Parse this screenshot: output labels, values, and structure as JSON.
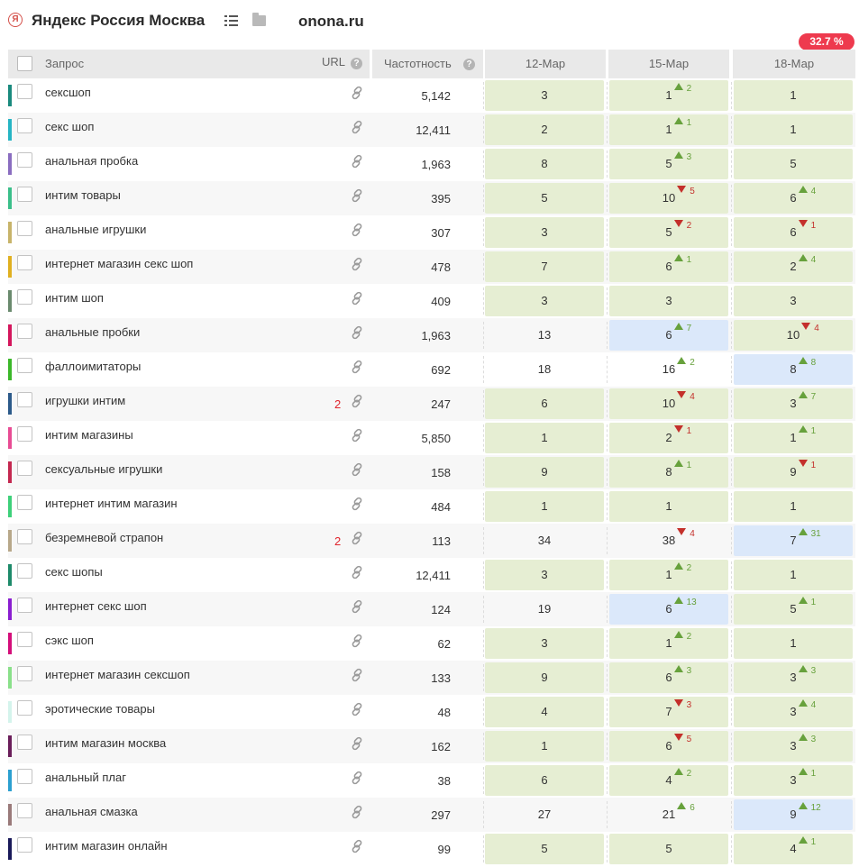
{
  "header": {
    "search_engine": "Яндекс Россия Москва",
    "domain": "onona.ru",
    "visibility_badge": "32.7 %",
    "icons": [
      "yandex-logo-icon",
      "list-icon",
      "folder-icon"
    ]
  },
  "columns": {
    "query": "Запрос",
    "url": "URL",
    "frequency": "Частотность",
    "dates": [
      "12-Мар",
      "15-Мар",
      "18-Мар"
    ]
  },
  "colors": {
    "cell_green": "#e6eed3",
    "cell_blue": "#dbe8fa",
    "delta_up": "#67a13c",
    "delta_down": "#c4302b",
    "badge": "#ee3a4e"
  },
  "rows": [
    {
      "query": "сексшоп",
      "color": "#1a8a7e",
      "url_count": "",
      "freq": "5,142",
      "pos": [
        {
          "v": "3",
          "hl": "green"
        },
        {
          "v": "1",
          "d": "up",
          "dv": "2",
          "hl": "green"
        },
        {
          "v": "1",
          "hl": "green"
        }
      ]
    },
    {
      "query": "секс шоп",
      "color": "#26b5c4",
      "url_count": "",
      "freq": "12,411",
      "pos": [
        {
          "v": "2",
          "hl": "green"
        },
        {
          "v": "1",
          "d": "up",
          "dv": "1",
          "hl": "green"
        },
        {
          "v": "1",
          "hl": "green"
        }
      ]
    },
    {
      "query": "анальная пробка",
      "color": "#8a6dc0",
      "url_count": "",
      "freq": "1,963",
      "pos": [
        {
          "v": "8",
          "hl": "green"
        },
        {
          "v": "5",
          "d": "up",
          "dv": "3",
          "hl": "green"
        },
        {
          "v": "5",
          "hl": "green"
        }
      ]
    },
    {
      "query": "интим товары",
      "color": "#3bbf8a",
      "url_count": "",
      "freq": "395",
      "pos": [
        {
          "v": "5",
          "hl": "green"
        },
        {
          "v": "10",
          "d": "down",
          "dv": "5",
          "hl": "green"
        },
        {
          "v": "6",
          "d": "up",
          "dv": "4",
          "hl": "green"
        }
      ]
    },
    {
      "query": "анальные игрушки",
      "color": "#c8b46a",
      "url_count": "",
      "freq": "307",
      "pos": [
        {
          "v": "3",
          "hl": "green"
        },
        {
          "v": "5",
          "d": "down",
          "dv": "2",
          "hl": "green"
        },
        {
          "v": "6",
          "d": "down",
          "dv": "1",
          "hl": "green"
        }
      ]
    },
    {
      "query": "интернет магазин секс шоп",
      "color": "#e0b020",
      "url_count": "",
      "freq": "478",
      "pos": [
        {
          "v": "7",
          "hl": "green"
        },
        {
          "v": "6",
          "d": "up",
          "dv": "1",
          "hl": "green"
        },
        {
          "v": "2",
          "d": "up",
          "dv": "4",
          "hl": "green"
        }
      ]
    },
    {
      "query": "интим шоп",
      "color": "#6a8a6e",
      "url_count": "",
      "freq": "409",
      "pos": [
        {
          "v": "3",
          "hl": "green"
        },
        {
          "v": "3",
          "hl": "green"
        },
        {
          "v": "3",
          "hl": "green"
        }
      ]
    },
    {
      "query": "анальные пробки",
      "color": "#d4165c",
      "url_count": "",
      "freq": "1,963",
      "pos": [
        {
          "v": "13",
          "hl": ""
        },
        {
          "v": "6",
          "d": "up",
          "dv": "7",
          "hl": "blue"
        },
        {
          "v": "10",
          "d": "down",
          "dv": "4",
          "hl": "green"
        }
      ]
    },
    {
      "query": "фаллоимитаторы",
      "color": "#3cb82a",
      "url_count": "",
      "freq": "692",
      "pos": [
        {
          "v": "18",
          "hl": ""
        },
        {
          "v": "16",
          "d": "up",
          "dv": "2",
          "hl": ""
        },
        {
          "v": "8",
          "d": "up",
          "dv": "8",
          "hl": "blue"
        }
      ]
    },
    {
      "query": "игрушки интим",
      "color": "#2c5a8a",
      "url_count": "2",
      "freq": "247",
      "pos": [
        {
          "v": "6",
          "hl": "green"
        },
        {
          "v": "10",
          "d": "down",
          "dv": "4",
          "hl": "green"
        },
        {
          "v": "3",
          "d": "up",
          "dv": "7",
          "hl": "green"
        }
      ]
    },
    {
      "query": "интим магазины",
      "color": "#e84c94",
      "url_count": "",
      "freq": "5,850",
      "pos": [
        {
          "v": "1",
          "hl": "green"
        },
        {
          "v": "2",
          "d": "down",
          "dv": "1",
          "hl": "green"
        },
        {
          "v": "1",
          "d": "up",
          "dv": "1",
          "hl": "green"
        }
      ]
    },
    {
      "query": "сексуальные игрушки",
      "color": "#c42850",
      "url_count": "",
      "freq": "158",
      "pos": [
        {
          "v": "9",
          "hl": "green"
        },
        {
          "v": "8",
          "d": "up",
          "dv": "1",
          "hl": "green"
        },
        {
          "v": "9",
          "d": "down",
          "dv": "1",
          "hl": "green"
        }
      ]
    },
    {
      "query": "интернет интим магазин",
      "color": "#3ed07a",
      "url_count": "",
      "freq": "484",
      "pos": [
        {
          "v": "1",
          "hl": "green"
        },
        {
          "v": "1",
          "hl": "green"
        },
        {
          "v": "1",
          "hl": "green"
        }
      ]
    },
    {
      "query": "безремневой страпон",
      "color": "#b8a88a",
      "url_count": "2",
      "freq": "113",
      "pos": [
        {
          "v": "34",
          "hl": ""
        },
        {
          "v": "38",
          "d": "down",
          "dv": "4",
          "hl": ""
        },
        {
          "v": "7",
          "d": "up",
          "dv": "31",
          "hl": "blue"
        }
      ]
    },
    {
      "query": "секс шопы",
      "color": "#1e8a6a",
      "url_count": "",
      "freq": "12,411",
      "pos": [
        {
          "v": "3",
          "hl": "green"
        },
        {
          "v": "1",
          "d": "up",
          "dv": "2",
          "hl": "green"
        },
        {
          "v": "1",
          "hl": "green"
        }
      ]
    },
    {
      "query": "интернет секс шоп",
      "color": "#8a1ed0",
      "url_count": "",
      "freq": "124",
      "pos": [
        {
          "v": "19",
          "hl": ""
        },
        {
          "v": "6",
          "d": "up",
          "dv": "13",
          "hl": "blue"
        },
        {
          "v": "5",
          "d": "up",
          "dv": "1",
          "hl": "green"
        }
      ]
    },
    {
      "query": "сэкс шоп",
      "color": "#d40e7a",
      "url_count": "",
      "freq": "62",
      "pos": [
        {
          "v": "3",
          "hl": "green"
        },
        {
          "v": "1",
          "d": "up",
          "dv": "2",
          "hl": "green"
        },
        {
          "v": "1",
          "hl": "green"
        }
      ]
    },
    {
      "query": "интернет магазин сексшоп",
      "color": "#8ae08a",
      "url_count": "",
      "freq": "133",
      "pos": [
        {
          "v": "9",
          "hl": "green"
        },
        {
          "v": "6",
          "d": "up",
          "dv": "3",
          "hl": "green"
        },
        {
          "v": "3",
          "d": "up",
          "dv": "3",
          "hl": "green"
        }
      ]
    },
    {
      "query": "эротические товары",
      "color": "#d4f4ec",
      "url_count": "",
      "freq": "48",
      "pos": [
        {
          "v": "4",
          "hl": "green"
        },
        {
          "v": "7",
          "d": "down",
          "dv": "3",
          "hl": "green"
        },
        {
          "v": "3",
          "d": "up",
          "dv": "4",
          "hl": "green"
        }
      ]
    },
    {
      "query": "интим магазин москва",
      "color": "#6a1e5a",
      "url_count": "",
      "freq": "162",
      "pos": [
        {
          "v": "1",
          "hl": "green"
        },
        {
          "v": "6",
          "d": "down",
          "dv": "5",
          "hl": "green"
        },
        {
          "v": "3",
          "d": "up",
          "dv": "3",
          "hl": "green"
        }
      ]
    },
    {
      "query": "анальный плаг",
      "color": "#2ca0d0",
      "url_count": "",
      "freq": "38",
      "pos": [
        {
          "v": "6",
          "hl": "green"
        },
        {
          "v": "4",
          "d": "up",
          "dv": "2",
          "hl": "green"
        },
        {
          "v": "3",
          "d": "up",
          "dv": "1",
          "hl": "green"
        }
      ]
    },
    {
      "query": "анальная смазка",
      "color": "#9a7a7a",
      "url_count": "",
      "freq": "297",
      "pos": [
        {
          "v": "27",
          "hl": ""
        },
        {
          "v": "21",
          "d": "up",
          "dv": "6",
          "hl": ""
        },
        {
          "v": "9",
          "d": "up",
          "dv": "12",
          "hl": "blue"
        }
      ]
    },
    {
      "query": "интим магазин онлайн",
      "color": "#1a1a5a",
      "url_count": "",
      "freq": "99",
      "pos": [
        {
          "v": "5",
          "hl": "green"
        },
        {
          "v": "5",
          "hl": "green"
        },
        {
          "v": "4",
          "d": "up",
          "dv": "1",
          "hl": "green"
        }
      ]
    }
  ]
}
